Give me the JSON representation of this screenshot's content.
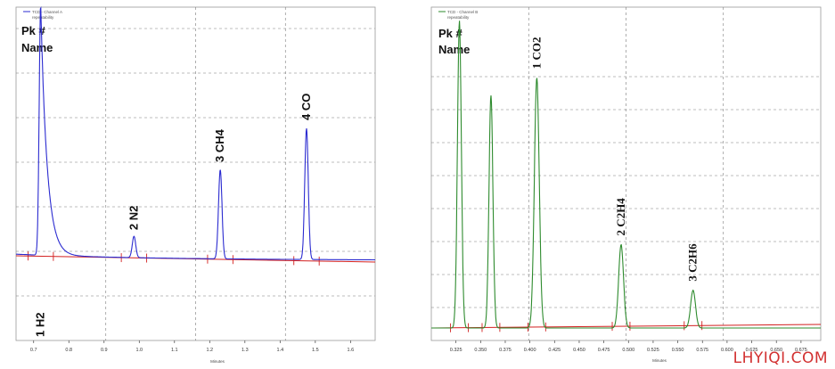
{
  "watermark": "LHYIQI.COM",
  "chart_data": [
    {
      "type": "line",
      "legend": [
        "TCD - Channel A",
        "repeatability"
      ],
      "pk_label": "Pk #",
      "name_label": "Name",
      "xlabel": "Minutes",
      "xlim": [
        0.65,
        1.67
      ],
      "x_ticks": [
        "0.7",
        "0.8",
        "0.9",
        "1.0",
        "1.1",
        "1.2",
        "1.3",
        "1.4",
        "1.5",
        "1.6"
      ],
      "ylim": [
        -120,
        330
      ],
      "colors": {
        "trace": "#2b2bd0",
        "baseline": "#d21f1f",
        "grid": "#7a7a7a"
      },
      "peaks": [
        {
          "number": "1",
          "name": "H2",
          "label": "1  H2",
          "rt": 0.72,
          "height": 330,
          "end": 0.79
        },
        {
          "number": "2",
          "name": "N2",
          "label": "2  N2",
          "rt": 0.985,
          "height": 28
        },
        {
          "number": "3",
          "name": "CH4",
          "label": "3  CH4",
          "rt": 1.23,
          "height": 117
        },
        {
          "number": "4",
          "name": "CO",
          "label": "4  CO",
          "rt": 1.475,
          "height": 172
        }
      ]
    },
    {
      "type": "line",
      "legend": [
        "TCD - Channel B",
        "repeatability"
      ],
      "pk_label": "Pk #",
      "name_label": "Name",
      "xlabel": "Minutes",
      "xlim": [
        0.3,
        0.695
      ],
      "x_ticks": [
        "0.325",
        "0.350",
        "0.375",
        "0.400",
        "0.425",
        "0.450",
        "0.475",
        "0.500",
        "0.525",
        "0.550",
        "0.575",
        "0.600",
        "0.625",
        "0.650",
        "0.675"
      ],
      "ylim": [
        -5,
        350
      ],
      "colors": {
        "trace": "#2e8b2e",
        "baseline": "#d21f1f",
        "grid": "#7a7a7a"
      },
      "peaks": [
        {
          "number": "",
          "name": "",
          "label": "",
          "rt": 0.3285,
          "height": 350
        },
        {
          "number": "",
          "name": "",
          "label": "",
          "rt": 0.3605,
          "height": 265
        },
        {
          "number": "1",
          "name": "CO2",
          "label": "1  CO2",
          "rt": 0.407,
          "height": 285
        },
        {
          "number": "2",
          "name": "C2H4",
          "label": "2  C2H4",
          "rt": 0.4925,
          "height": 95
        },
        {
          "number": "3",
          "name": "C2H6",
          "label": "3  C2H6",
          "rt": 0.5655,
          "height": 43
        }
      ]
    }
  ]
}
